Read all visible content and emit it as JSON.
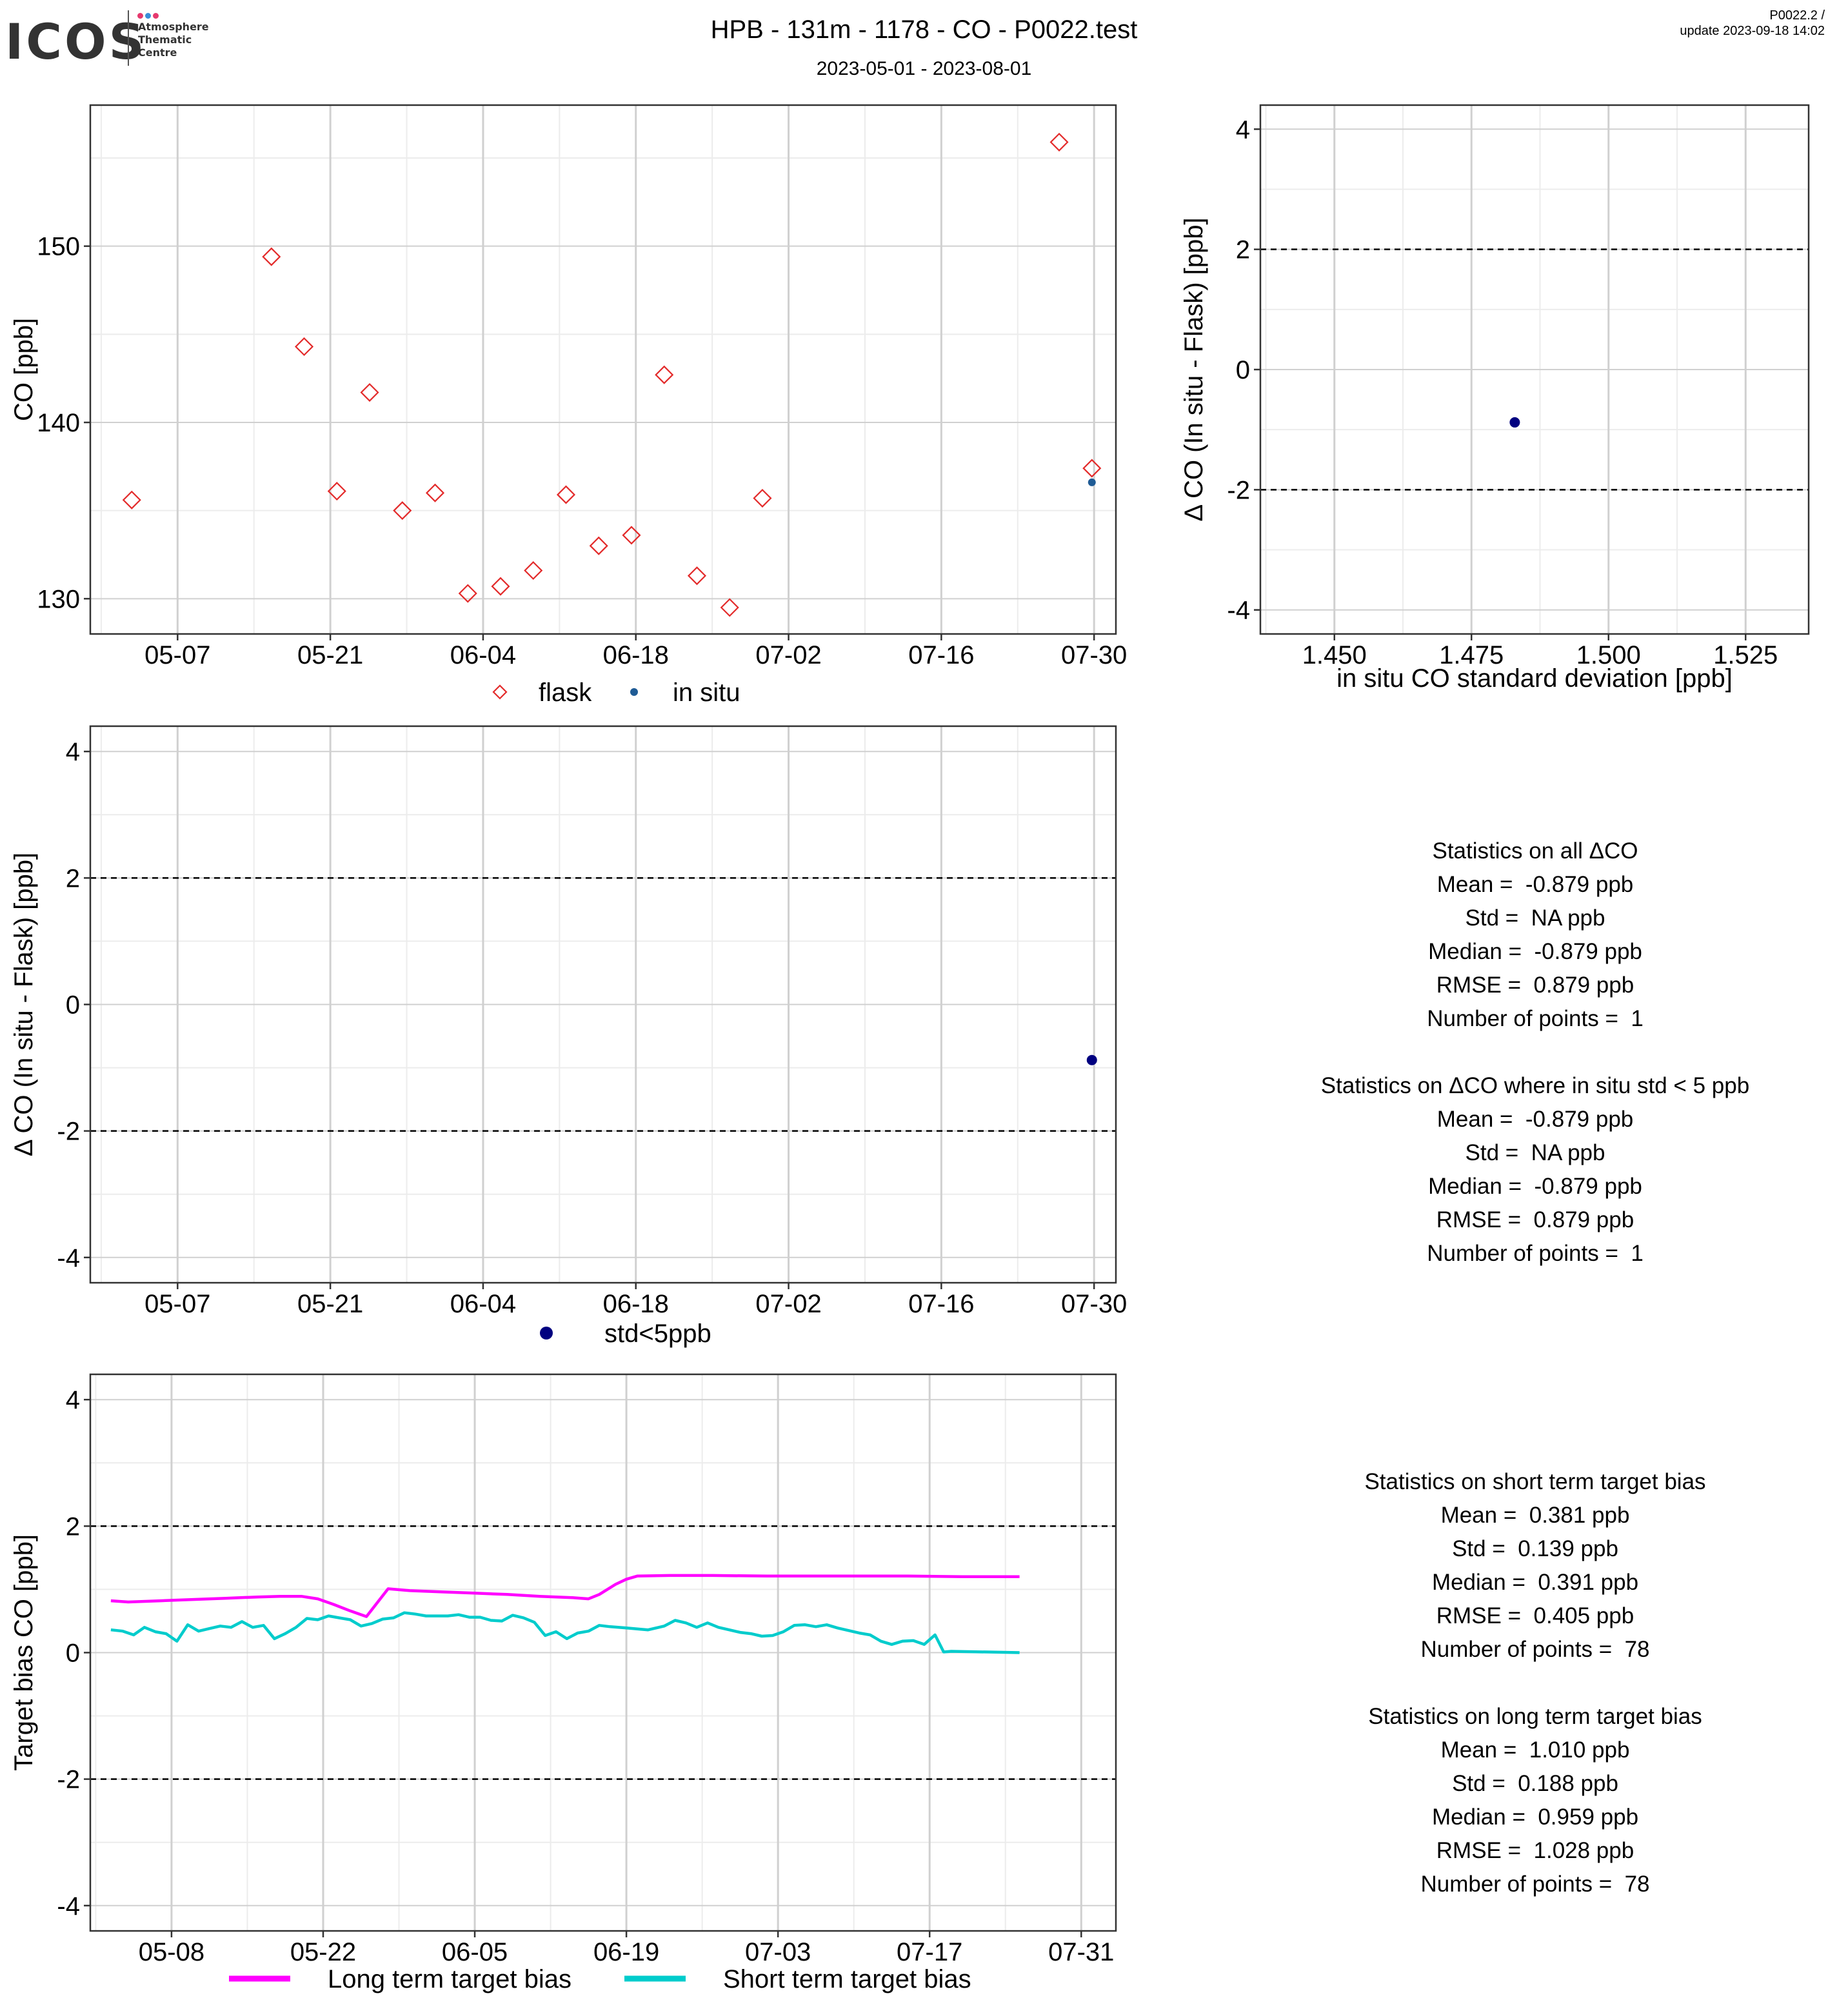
{
  "header": {
    "logo_text": "ICOS",
    "logo_subtitle": "Atmosphere\nThematic\nCentre",
    "logo_dot_colors": [
      "#e6396e",
      "#3a8fd9",
      "#e6396e"
    ],
    "title": "HPB - 131m - 1178 - CO - P0022.test",
    "subtitle": "2023-05-01 - 2023-08-01",
    "version_line1": "P0022.2 /",
    "version_line2": "update  2023-09-18 14:02"
  },
  "colors": {
    "flask": "#e32a2a",
    "insitu": "#1f5b95",
    "std_point": "#000080",
    "long_term": "#ff00ff",
    "short_term": "#00cccc",
    "grid_major": "#d0d0d0",
    "grid_minor": "#ececec"
  },
  "stats_delta": {
    "lines": [
      "Statistics on all ΔCO",
      "Mean =  -0.879 ppb",
      "Std =  NA ppb",
      "Median =  -0.879 ppb",
      "RMSE =  0.879 ppb",
      "Number of points =  1",
      "",
      "Statistics on ΔCO where in situ std < 5 ppb",
      "Mean =  -0.879 ppb",
      "Std =  NA ppb",
      "Median =  -0.879 ppb",
      "RMSE =  0.879 ppb",
      "Number of points =  1"
    ]
  },
  "stats_bias": {
    "lines": [
      "Statistics on short term target bias",
      "Mean =  0.381 ppb",
      "Std =  0.139 ppb",
      "Median =  0.391 ppb",
      "RMSE =  0.405 ppb",
      "Number of points =  78",
      "",
      "Statistics on long term target bias",
      "Mean =  1.010 ppb",
      "Std =  0.188 ppb",
      "Median =  0.959 ppb",
      "RMSE =  1.028 ppb",
      "Number of points =  78"
    ]
  },
  "chart_data": [
    {
      "id": "co-timeseries",
      "type": "scatter",
      "ylabel": "CO [ppb]",
      "xlim": [
        -2.5,
        91.5
      ],
      "ylim": [
        128,
        158
      ],
      "x_ticks": [
        5.5,
        19.5,
        33.5,
        47.5,
        61.5,
        75.5,
        89.5
      ],
      "x_tick_labels": [
        "05-07",
        "05-21",
        "06-04",
        "06-18",
        "07-02",
        "07-16",
        "07-30"
      ],
      "y_ticks": [
        130,
        140,
        150
      ],
      "y_tick_labels": [
        "130",
        "140",
        "150"
      ],
      "legend": {
        "position": "bottom",
        "entries": [
          "flask",
          "in situ"
        ]
      },
      "series": [
        {
          "name": "flask",
          "marker": "diamond-open",
          "points": [
            [
              1.3,
              135.6
            ],
            [
              14.1,
              149.4
            ],
            [
              17.1,
              144.3
            ],
            [
              20.1,
              136.1
            ],
            [
              23.1,
              141.7
            ],
            [
              26.1,
              135.0
            ],
            [
              29.1,
              136.0
            ],
            [
              32.1,
              130.3
            ],
            [
              35.1,
              130.7
            ],
            [
              38.1,
              131.6
            ],
            [
              41.1,
              135.9
            ],
            [
              44.1,
              133.0
            ],
            [
              47.1,
              133.6
            ],
            [
              50.1,
              142.7
            ],
            [
              53.1,
              131.3
            ],
            [
              56.1,
              129.5
            ],
            [
              59.1,
              135.7
            ],
            [
              86.3,
              155.9
            ],
            [
              89.3,
              137.4
            ]
          ]
        },
        {
          "name": "in situ",
          "marker": "dot",
          "points": [
            [
              89.3,
              136.6
            ]
          ]
        }
      ]
    },
    {
      "id": "delta-vs-std",
      "type": "scatter",
      "xlabel": "in situ CO standard deviation [ppb]",
      "ylabel": "Δ CO (In situ - Flask) [ppb]",
      "xlim": [
        1.4365,
        1.5365
      ],
      "ylim": [
        -4.4,
        4.4
      ],
      "x_ticks": [
        1.45,
        1.475,
        1.5,
        1.525
      ],
      "x_tick_labels": [
        "1.450",
        "1.475",
        "1.500",
        "1.525"
      ],
      "y_ticks": [
        -4,
        -2,
        0,
        2,
        4
      ],
      "y_tick_labels": [
        "-4",
        "-2",
        "0",
        "2",
        "4"
      ],
      "hlines": [
        -2,
        2
      ],
      "series": [
        {
          "marker": "dot",
          "points": [
            [
              1.4829,
              -0.879
            ]
          ]
        }
      ]
    },
    {
      "id": "delta-timeseries",
      "type": "scatter",
      "ylabel": "Δ CO (In situ - Flask) [ppb]",
      "xlim": [
        -2.5,
        91.5
      ],
      "ylim": [
        -4.4,
        4.4
      ],
      "x_ticks": [
        5.5,
        19.5,
        33.5,
        47.5,
        61.5,
        75.5,
        89.5
      ],
      "x_tick_labels": [
        "05-07",
        "05-21",
        "06-04",
        "06-18",
        "07-02",
        "07-16",
        "07-30"
      ],
      "y_ticks": [
        -4,
        -2,
        0,
        2,
        4
      ],
      "y_tick_labels": [
        "-4",
        "-2",
        "0",
        "2",
        "4"
      ],
      "hlines": [
        -2,
        2
      ],
      "legend": {
        "position": "bottom",
        "entries": [
          "std<5ppb"
        ]
      },
      "series": [
        {
          "name": "std<5ppb",
          "marker": "dot",
          "points": [
            [
              89.3,
              -0.879
            ]
          ]
        }
      ]
    },
    {
      "id": "target-bias",
      "type": "line",
      "ylabel": "Target bias CO [ppb]",
      "xlim": [
        -0.5,
        94.2
      ],
      "ylim": [
        -4.4,
        4.4
      ],
      "x_ticks": [
        7,
        21,
        35,
        49,
        63,
        77,
        91
      ],
      "x_tick_labels": [
        "05-08",
        "05-22",
        "06-05",
        "06-19",
        "07-03",
        "07-17",
        "07-31"
      ],
      "y_ticks": [
        -4,
        -2,
        0,
        2,
        4
      ],
      "y_tick_labels": [
        "-4",
        "-2",
        "0",
        "2",
        "4"
      ],
      "hlines": [
        -2,
        2
      ],
      "legend": {
        "position": "bottom",
        "entries": [
          "Long term target bias",
          "Short term target bias"
        ]
      },
      "series": [
        {
          "name": "Long term target bias",
          "points": [
            [
              1.4,
              0.82
            ],
            [
              3.0,
              0.8
            ],
            [
              6.0,
              0.82
            ],
            [
              9.0,
              0.84
            ],
            [
              12.0,
              0.86
            ],
            [
              15.0,
              0.88
            ],
            [
              17.0,
              0.89
            ],
            [
              19.0,
              0.89
            ],
            [
              20.5,
              0.85
            ],
            [
              22.0,
              0.76
            ],
            [
              23.5,
              0.66
            ],
            [
              25.0,
              0.57
            ],
            [
              27.0,
              1.01
            ],
            [
              29.0,
              0.98
            ],
            [
              32.0,
              0.96
            ],
            [
              35.0,
              0.94
            ],
            [
              38.0,
              0.92
            ],
            [
              41.0,
              0.89
            ],
            [
              44.0,
              0.87
            ],
            [
              45.5,
              0.85
            ],
            [
              46.5,
              0.92
            ],
            [
              48.0,
              1.08
            ],
            [
              49.0,
              1.16
            ],
            [
              50.0,
              1.21
            ],
            [
              53.0,
              1.22
            ],
            [
              57.0,
              1.22
            ],
            [
              62.0,
              1.21
            ],
            [
              66.0,
              1.21
            ],
            [
              70.0,
              1.21
            ],
            [
              75.0,
              1.21
            ],
            [
              80.0,
              1.2
            ],
            [
              85.3,
              1.2
            ]
          ]
        },
        {
          "name": "Short term target bias",
          "points": [
            [
              1.4,
              0.36
            ],
            [
              2.5,
              0.34
            ],
            [
              3.5,
              0.28
            ],
            [
              4.5,
              0.4
            ],
            [
              5.5,
              0.33
            ],
            [
              6.5,
              0.3
            ],
            [
              7.5,
              0.18
            ],
            [
              8.5,
              0.44
            ],
            [
              9.5,
              0.34
            ],
            [
              10.5,
              0.38
            ],
            [
              11.5,
              0.42
            ],
            [
              12.5,
              0.4
            ],
            [
              13.5,
              0.49
            ],
            [
              14.5,
              0.4
            ],
            [
              15.5,
              0.43
            ],
            [
              16.5,
              0.22
            ],
            [
              17.5,
              0.3
            ],
            [
              18.5,
              0.4
            ],
            [
              19.5,
              0.54
            ],
            [
              20.5,
              0.52
            ],
            [
              21.5,
              0.58
            ],
            [
              22.5,
              0.55
            ],
            [
              23.5,
              0.52
            ],
            [
              24.5,
              0.42
            ],
            [
              25.5,
              0.46
            ],
            [
              26.5,
              0.53
            ],
            [
              27.5,
              0.55
            ],
            [
              28.5,
              0.63
            ],
            [
              29.5,
              0.61
            ],
            [
              30.5,
              0.58
            ],
            [
              31.5,
              0.58
            ],
            [
              32.5,
              0.58
            ],
            [
              33.5,
              0.6
            ],
            [
              34.5,
              0.56
            ],
            [
              35.5,
              0.56
            ],
            [
              36.5,
              0.51
            ],
            [
              37.5,
              0.5
            ],
            [
              38.5,
              0.59
            ],
            [
              39.5,
              0.55
            ],
            [
              40.5,
              0.48
            ],
            [
              41.5,
              0.27
            ],
            [
              42.5,
              0.33
            ],
            [
              43.5,
              0.22
            ],
            [
              44.5,
              0.31
            ],
            [
              45.5,
              0.34
            ],
            [
              46.5,
              0.43
            ],
            [
              47.5,
              0.41
            ],
            [
              49.0,
              0.39
            ],
            [
              51.0,
              0.36
            ],
            [
              52.5,
              0.42
            ],
            [
              53.5,
              0.51
            ],
            [
              54.5,
              0.47
            ],
            [
              55.5,
              0.4
            ],
            [
              56.5,
              0.47
            ],
            [
              57.5,
              0.4
            ],
            [
              58.5,
              0.36
            ],
            [
              59.5,
              0.32
            ],
            [
              60.5,
              0.3
            ],
            [
              61.5,
              0.26
            ],
            [
              62.5,
              0.27
            ],
            [
              63.5,
              0.33
            ],
            [
              64.5,
              0.43
            ],
            [
              65.5,
              0.44
            ],
            [
              66.5,
              0.41
            ],
            [
              67.5,
              0.44
            ],
            [
              68.5,
              0.39
            ],
            [
              69.5,
              0.35
            ],
            [
              70.5,
              0.31
            ],
            [
              71.5,
              0.28
            ],
            [
              72.5,
              0.18
            ],
            [
              73.5,
              0.13
            ],
            [
              74.5,
              0.18
            ],
            [
              75.5,
              0.19
            ],
            [
              76.5,
              0.13
            ],
            [
              77.5,
              0.28
            ],
            [
              78.3,
              0.01
            ],
            [
              79.0,
              0.02
            ],
            [
              85.3,
              0.0
            ]
          ]
        }
      ]
    }
  ]
}
